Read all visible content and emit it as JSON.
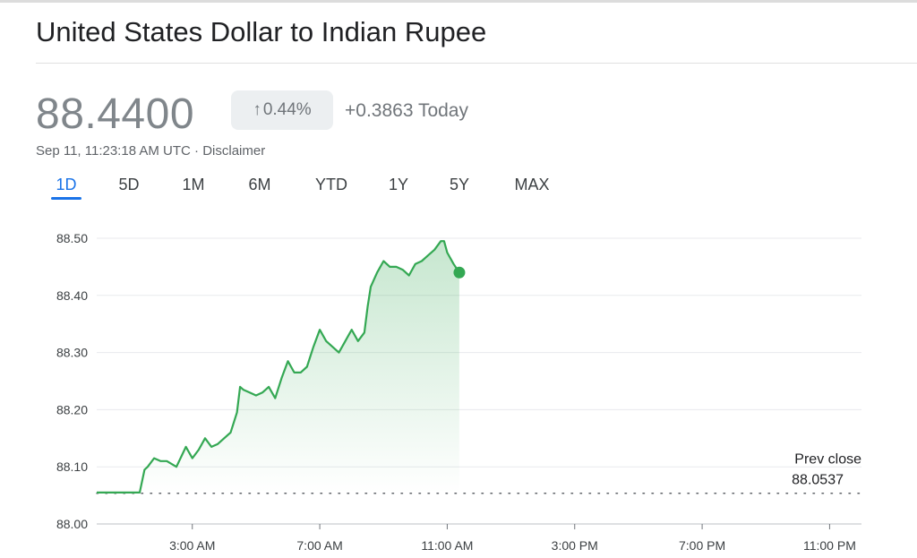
{
  "header": {
    "title": "United States Dollar to Indian Rupee"
  },
  "quote": {
    "price": "88.4400",
    "change_percent": "0.44%",
    "change_arrow": "↑",
    "change_today": "+0.3863 Today",
    "timestamp": "Sep 11, 11:23:18 AM UTC · Disclaimer"
  },
  "ranges": [
    "1D",
    "5D",
    "1M",
    "6M",
    "YTD",
    "1Y",
    "5Y",
    "MAX"
  ],
  "active_range": "1D",
  "colors": {
    "line": "#34a853",
    "active_tab": "#1a73e8",
    "muted_text": "#70757a"
  },
  "chart_data": {
    "type": "area",
    "y_ticks": [
      88.0,
      88.1,
      88.2,
      88.3,
      88.4,
      88.5
    ],
    "y_tick_labels": [
      "88.00",
      "88.10",
      "88.20",
      "88.30",
      "88.40",
      "88.50"
    ],
    "ylim": [
      88.0,
      88.5
    ],
    "x_ticks": [
      3,
      7,
      11,
      15,
      19,
      23
    ],
    "x_tick_labels": [
      "3:00 AM",
      "7:00 AM",
      "11:00 AM",
      "3:00 PM",
      "7:00 PM",
      "11:00 PM"
    ],
    "xlim": [
      0,
      24
    ],
    "grid": true,
    "prev_close": {
      "label": "Prev close",
      "value_label": "88.0537",
      "value": 88.0537
    },
    "series": [
      {
        "x": [
          0,
          0.3,
          0.6,
          0.9,
          1.2,
          1.35,
          1.5,
          1.6,
          1.8,
          2.0,
          2.2,
          2.5,
          2.8,
          3.0,
          3.2,
          3.4,
          3.6,
          3.8,
          4.0,
          4.2,
          4.4,
          4.5,
          4.6,
          4.8,
          5.0,
          5.2,
          5.4,
          5.6,
          5.8,
          6.0,
          6.2,
          6.4,
          6.6,
          6.8,
          7.0,
          7.2,
          7.4,
          7.6,
          7.8,
          8.0,
          8.2,
          8.4,
          8.5,
          8.6,
          8.8,
          9.0,
          9.2,
          9.4,
          9.6,
          9.8,
          10.0,
          10.2,
          10.4,
          10.6,
          10.8,
          10.9,
          11.0,
          11.2,
          11.38
        ],
        "y": [
          88.055,
          88.055,
          88.055,
          88.055,
          88.055,
          88.055,
          88.095,
          88.1,
          88.115,
          88.11,
          88.11,
          88.1,
          88.135,
          88.115,
          88.13,
          88.15,
          88.135,
          88.14,
          88.15,
          88.16,
          88.195,
          88.24,
          88.235,
          88.23,
          88.225,
          88.23,
          88.24,
          88.22,
          88.255,
          88.285,
          88.265,
          88.265,
          88.275,
          88.31,
          88.34,
          88.32,
          88.31,
          88.3,
          88.32,
          88.34,
          88.32,
          88.335,
          88.38,
          88.415,
          88.44,
          88.46,
          88.45,
          88.45,
          88.445,
          88.435,
          88.455,
          88.46,
          88.47,
          88.48,
          88.495,
          88.495,
          88.475,
          88.455,
          88.44
        ]
      }
    ]
  }
}
